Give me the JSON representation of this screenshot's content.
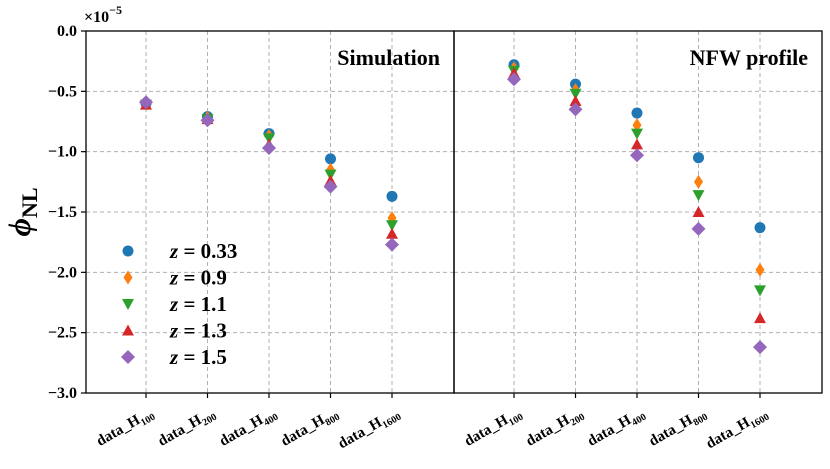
{
  "chart_data": {
    "type": "scatter",
    "ylabel": "ϕ",
    "ylabel_subscript": "NL",
    "scale_prefix": "×10",
    "scale_exponent": "−5",
    "ylim": [
      -3.0,
      0.0
    ],
    "yticks": [
      0.0,
      -0.5,
      -1.0,
      -1.5,
      -2.0,
      -2.5,
      -3.0
    ],
    "ytick_labels": [
      "0.0",
      "−0.5",
      "−1.0",
      "−1.5",
      "−2.0",
      "−2.5",
      "−3.0"
    ],
    "grid": true,
    "legend_position": "left",
    "categories": [
      {
        "base": "data_H",
        "sub": "100"
      },
      {
        "base": "data_H",
        "sub": "200"
      },
      {
        "base": "data_H",
        "sub": "400"
      },
      {
        "base": "data_H",
        "sub": "800"
      },
      {
        "base": "data_H",
        "sub": "1600"
      }
    ],
    "series_styles": [
      {
        "name": "z = 0.33",
        "z": "0.33",
        "marker": "circle",
        "color": "#1f77b4"
      },
      {
        "name": "z = 0.9",
        "z": "0.9",
        "marker": "thin_diamond",
        "color": "#ff7f0e"
      },
      {
        "name": "z = 1.1",
        "z": "1.1",
        "marker": "triangle_down",
        "color": "#2ca02c"
      },
      {
        "name": "z = 1.3",
        "z": "1.3",
        "marker": "triangle_up",
        "color": "#d62728"
      },
      {
        "name": "z = 1.5",
        "z": "1.5",
        "marker": "diamond",
        "color": "#9467bd"
      }
    ],
    "panels": [
      {
        "title": "Simulation",
        "series": [
          {
            "name": "z = 0.33",
            "values": [
              -0.6,
              -0.71,
              -0.85,
              -1.06,
              -1.37
            ]
          },
          {
            "name": "z = 0.9",
            "values": [
              -0.6,
              -0.72,
              -0.87,
              -1.15,
              -1.55
            ]
          },
          {
            "name": "z = 1.1",
            "values": [
              -0.61,
              -0.73,
              -0.89,
              -1.19,
              -1.61
            ]
          },
          {
            "name": "z = 1.3",
            "values": [
              -0.61,
              -0.73,
              -0.94,
              -1.24,
              -1.68
            ]
          },
          {
            "name": "z = 1.5",
            "values": [
              -0.59,
              -0.74,
              -0.97,
              -1.29,
              -1.77
            ]
          }
        ]
      },
      {
        "title": "NFW profile",
        "series": [
          {
            "name": "z = 0.33",
            "values": [
              -0.28,
              -0.44,
              -0.68,
              -1.05,
              -1.63
            ]
          },
          {
            "name": "z = 0.9",
            "values": [
              -0.31,
              -0.49,
              -0.78,
              -1.25,
              -1.98
            ]
          },
          {
            "name": "z = 1.1",
            "values": [
              -0.33,
              -0.52,
              -0.85,
              -1.36,
              -2.15
            ]
          },
          {
            "name": "z = 1.3",
            "values": [
              -0.35,
              -0.58,
              -0.94,
              -1.5,
              -2.38
            ]
          },
          {
            "name": "z = 1.5",
            "values": [
              -0.4,
              -0.65,
              -1.03,
              -1.64,
              -2.62
            ]
          }
        ]
      }
    ]
  }
}
